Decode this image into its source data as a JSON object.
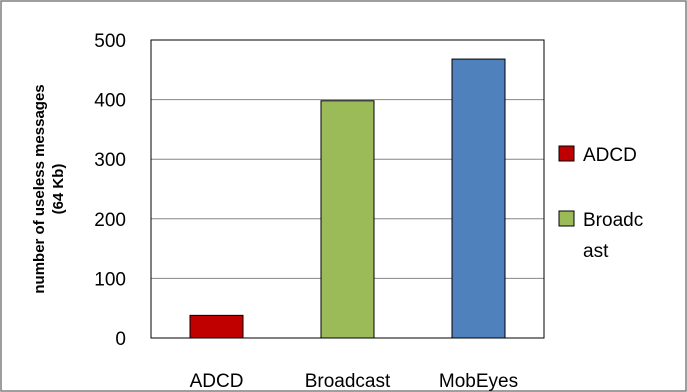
{
  "chart_data": {
    "type": "bar",
    "categories": [
      "ADCD",
      "Broadcast",
      "MobEyes"
    ],
    "values": [
      38,
      398,
      468
    ],
    "colors": [
      "#c00000",
      "#9bbb59",
      "#4f81bd"
    ],
    "ylabel_line1": "number of useless messages",
    "ylabel_line2": "(64 Kb)",
    "ylim": [
      0,
      500
    ],
    "yticks": [
      0,
      100,
      200,
      300,
      400,
      500
    ],
    "grid": true,
    "legend": {
      "placement": "right",
      "entries": [
        {
          "lines": [
            "ADCD"
          ],
          "color": "#c00000"
        },
        {
          "lines": [
            "Broadc",
            "ast"
          ],
          "color": "#9bbb59"
        }
      ]
    }
  }
}
